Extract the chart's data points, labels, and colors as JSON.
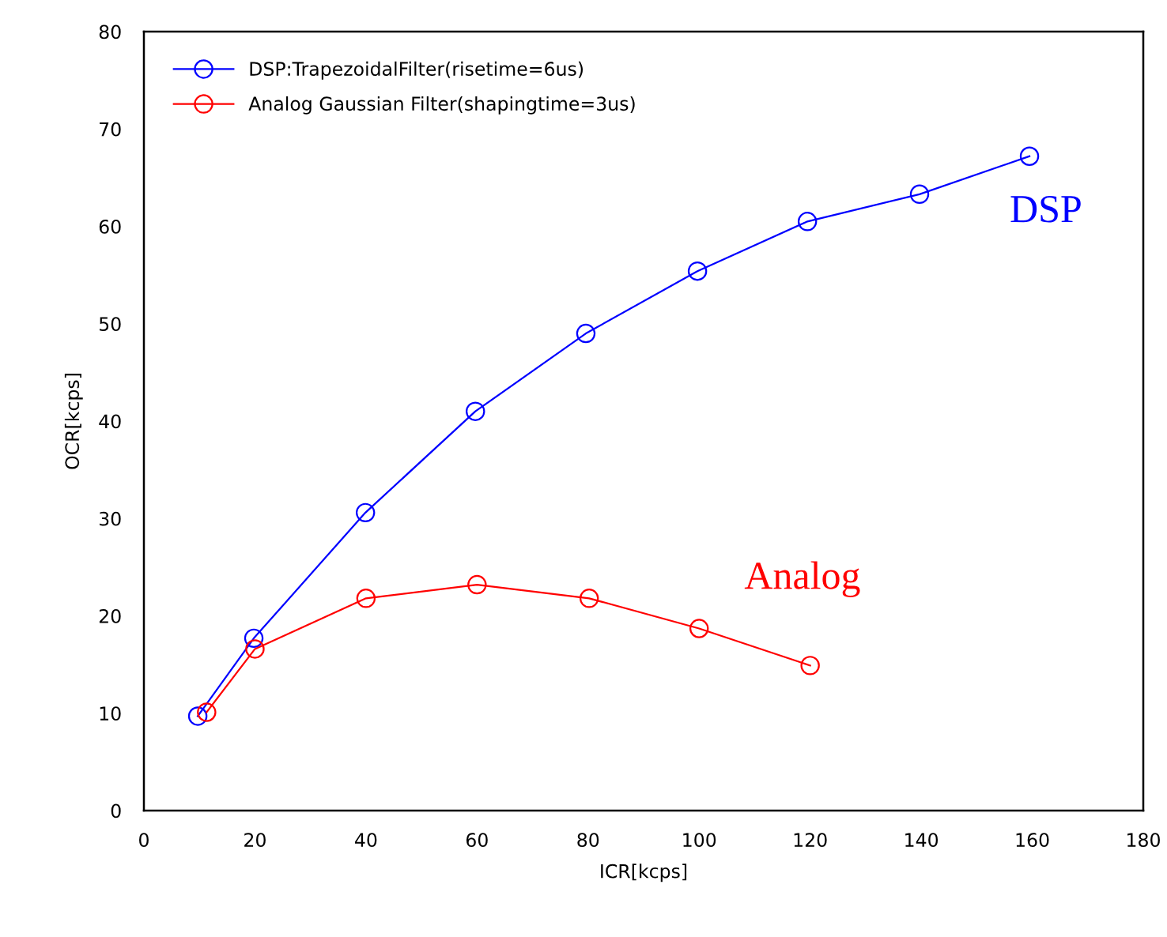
{
  "chart_data": {
    "type": "line",
    "xlabel": "ICR[kcps]",
    "ylabel": "OCR[kcps]",
    "xlim": [
      0,
      180
    ],
    "xticks": [
      0,
      20,
      40,
      60,
      80,
      100,
      120,
      140,
      160,
      180
    ],
    "ylim": [
      0,
      80
    ],
    "yticks": [
      0,
      10,
      20,
      30,
      40,
      50,
      60,
      70,
      80
    ],
    "grid": false,
    "legend": "top left",
    "marker": "circle",
    "line_style": "solid",
    "series": [
      {
        "name": "DSP:TrapezoidalFilter(risetime=6us)",
        "color": "#0000ff",
        "x": [
          9.7,
          19.8,
          39.9,
          59.7,
          79.6,
          99.7,
          119.5,
          139.7,
          159.5
        ],
        "values": [
          9.7,
          17.7,
          30.6,
          41.0,
          49.0,
          55.4,
          60.5,
          63.3,
          67.2
        ]
      },
      {
        "name": "Analog Gaussian Filter(shapingtime=3us)",
        "color": "#ff0000",
        "x": [
          11.3,
          20,
          40,
          60,
          80.2,
          100,
          120
        ],
        "values": [
          10.1,
          16.6,
          21.8,
          23.2,
          21.8,
          18.7,
          14.9
        ]
      }
    ],
    "annotations": [
      {
        "text": "DSP",
        "x": 159.5,
        "y": 67.2
      },
      {
        "text": "Analog",
        "x": 120,
        "y": 14.9
      }
    ]
  }
}
